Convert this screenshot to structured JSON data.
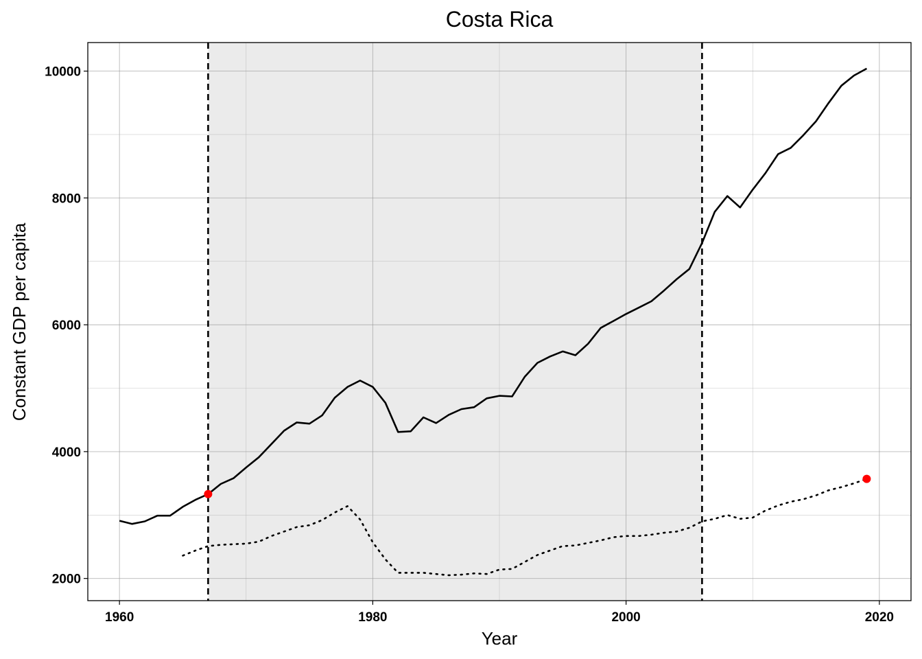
{
  "chart_data": {
    "type": "line",
    "title": "Costa Rica",
    "xlabel": "Year",
    "ylabel": "Constant GDP per capita",
    "xlim": [
      1957.5,
      2022.5
    ],
    "ylim": [
      1650,
      10450
    ],
    "x_ticks": [
      1960,
      1980,
      2000,
      2020
    ],
    "y_ticks": [
      2000,
      4000,
      6000,
      8000,
      10000
    ],
    "x_tick_labels": [
      "1960",
      "1980",
      "2000",
      "2020"
    ],
    "y_tick_labels": [
      "2000",
      "4000",
      "6000",
      "8000",
      "10000"
    ],
    "grid": true,
    "legend": "none",
    "shaded_region": {
      "x_start": 1967,
      "x_end": 2006,
      "color": "#ebebeb"
    },
    "vlines": [
      {
        "x": 1967,
        "style": "dashed"
      },
      {
        "x": 2006,
        "style": "dashed"
      }
    ],
    "series": [
      {
        "style": "solid",
        "color": "#000000",
        "points": [
          [
            1960,
            2910
          ],
          [
            1961,
            2860
          ],
          [
            1962,
            2900
          ],
          [
            1963,
            2990
          ],
          [
            1964,
            2990
          ],
          [
            1965,
            3130
          ],
          [
            1966,
            3240
          ],
          [
            1967,
            3330
          ],
          [
            1968,
            3490
          ],
          [
            1969,
            3580
          ],
          [
            1970,
            3750
          ],
          [
            1971,
            3910
          ],
          [
            1972,
            4120
          ],
          [
            1973,
            4330
          ],
          [
            1974,
            4460
          ],
          [
            1975,
            4440
          ],
          [
            1976,
            4570
          ],
          [
            1977,
            4850
          ],
          [
            1978,
            5020
          ],
          [
            1979,
            5120
          ],
          [
            1980,
            5020
          ],
          [
            1981,
            4770
          ],
          [
            1982,
            4310
          ],
          [
            1983,
            4320
          ],
          [
            1984,
            4540
          ],
          [
            1985,
            4450
          ],
          [
            1986,
            4580
          ],
          [
            1987,
            4670
          ],
          [
            1988,
            4700
          ],
          [
            1989,
            4840
          ],
          [
            1990,
            4880
          ],
          [
            1991,
            4870
          ],
          [
            1992,
            5180
          ],
          [
            1993,
            5400
          ],
          [
            1994,
            5500
          ],
          [
            1995,
            5580
          ],
          [
            1996,
            5520
          ],
          [
            1997,
            5700
          ],
          [
            1998,
            5950
          ],
          [
            1999,
            6060
          ],
          [
            2000,
            6170
          ],
          [
            2001,
            6270
          ],
          [
            2002,
            6370
          ],
          [
            2003,
            6540
          ],
          [
            2004,
            6720
          ],
          [
            2005,
            6880
          ],
          [
            2006,
            7290
          ],
          [
            2007,
            7780
          ],
          [
            2008,
            8030
          ],
          [
            2009,
            7850
          ],
          [
            2010,
            8130
          ],
          [
            2011,
            8390
          ],
          [
            2012,
            8690
          ],
          [
            2013,
            8790
          ],
          [
            2014,
            8990
          ],
          [
            2015,
            9210
          ],
          [
            2016,
            9500
          ],
          [
            2017,
            9770
          ],
          [
            2018,
            9930
          ],
          [
            2019,
            10040
          ]
        ]
      },
      {
        "style": "dotted",
        "color": "#000000",
        "points": [
          [
            1965,
            2360
          ],
          [
            1966,
            2440
          ],
          [
            1967,
            2510
          ],
          [
            1968,
            2530
          ],
          [
            1969,
            2540
          ],
          [
            1970,
            2550
          ],
          [
            1971,
            2580
          ],
          [
            1972,
            2670
          ],
          [
            1973,
            2740
          ],
          [
            1974,
            2810
          ],
          [
            1975,
            2840
          ],
          [
            1976,
            2920
          ],
          [
            1977,
            3040
          ],
          [
            1978,
            3140
          ],
          [
            1979,
            2930
          ],
          [
            1980,
            2570
          ],
          [
            1981,
            2300
          ],
          [
            1982,
            2090
          ],
          [
            1983,
            2090
          ],
          [
            1984,
            2090
          ],
          [
            1985,
            2070
          ],
          [
            1986,
            2050
          ],
          [
            1987,
            2060
          ],
          [
            1988,
            2080
          ],
          [
            1989,
            2070
          ],
          [
            1990,
            2140
          ],
          [
            1991,
            2150
          ],
          [
            1992,
            2260
          ],
          [
            1993,
            2370
          ],
          [
            1994,
            2440
          ],
          [
            1995,
            2510
          ],
          [
            1996,
            2520
          ],
          [
            1997,
            2560
          ],
          [
            1998,
            2600
          ],
          [
            1999,
            2650
          ],
          [
            2000,
            2670
          ],
          [
            2001,
            2670
          ],
          [
            2002,
            2690
          ],
          [
            2003,
            2720
          ],
          [
            2004,
            2740
          ],
          [
            2005,
            2800
          ],
          [
            2006,
            2900
          ],
          [
            2007,
            2940
          ],
          [
            2008,
            3000
          ],
          [
            2009,
            2940
          ],
          [
            2010,
            2960
          ],
          [
            2011,
            3070
          ],
          [
            2012,
            3150
          ],
          [
            2013,
            3210
          ],
          [
            2014,
            3250
          ],
          [
            2015,
            3310
          ],
          [
            2016,
            3390
          ],
          [
            2017,
            3440
          ],
          [
            2018,
            3500
          ],
          [
            2019,
            3570
          ]
        ]
      }
    ],
    "highlight_points": [
      {
        "x": 1967,
        "y": 3330,
        "color": "#ff0000"
      },
      {
        "x": 2019,
        "y": 3570,
        "color": "#ff0000"
      }
    ]
  }
}
